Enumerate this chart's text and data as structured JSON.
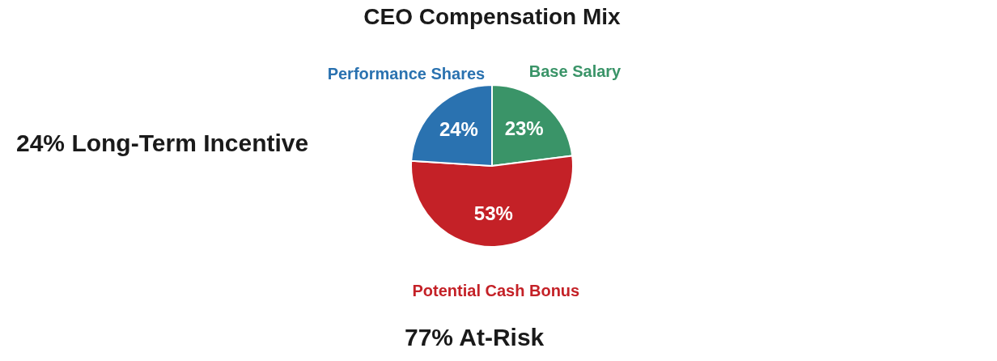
{
  "chart_data": {
    "type": "pie",
    "title": "CEO Compensation Mix",
    "categories": [
      "Base Salary",
      "Potential Cash Bonus",
      "Performance Shares"
    ],
    "values": [
      23,
      53,
      24
    ],
    "colors": [
      "#3a9468",
      "#c42127",
      "#2a72b0"
    ],
    "value_labels": [
      "23%",
      "53%",
      "24%"
    ],
    "annotations": [
      "24% Long-Term Incentive",
      "77% At-Risk"
    ]
  }
}
